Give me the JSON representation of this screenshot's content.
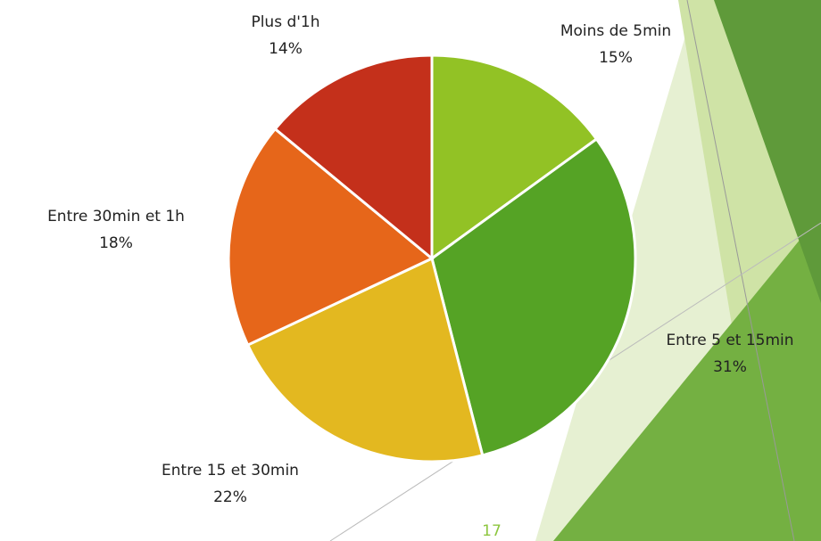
{
  "chart_data": {
    "type": "pie",
    "categories": [
      "Moins de 5min",
      "Entre 5 et 15min",
      "Entre 15 et 30min",
      "Entre 30min et 1h",
      "Plus d'1h"
    ],
    "values": [
      15,
      31,
      22,
      18,
      14
    ],
    "value_labels": [
      "15%",
      "31%",
      "22%",
      "18%",
      "14%"
    ],
    "colors": [
      "#92c225",
      "#55a325",
      "#e3b820",
      "#e6661a",
      "#c4301b"
    ]
  },
  "slide": {
    "page_number": "17"
  }
}
